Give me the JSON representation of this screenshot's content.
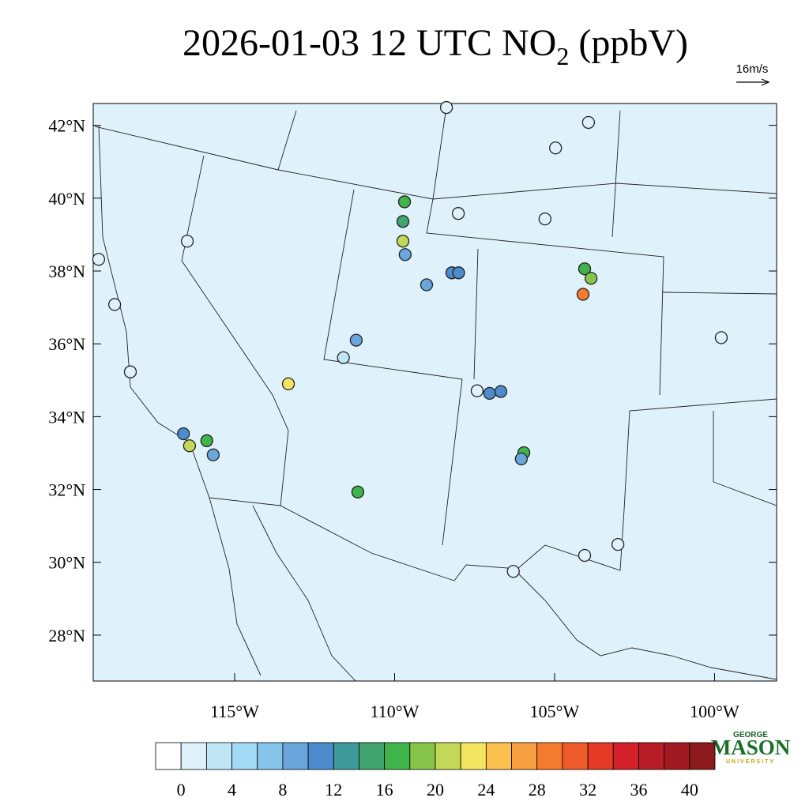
{
  "title": {
    "text": "2026-01-03 12 UTC NO",
    "subscript": "2",
    "suffix": " (ppbV)"
  },
  "map": {
    "xlim": [
      -119.42,
      -98.06
    ],
    "ylim": [
      26.74,
      42.6
    ],
    "background": "#dff2fb",
    "xticks": [
      {
        "value": -115,
        "label": "115°W"
      },
      {
        "value": -110,
        "label": "110°W"
      },
      {
        "value": -105,
        "label": "105°W"
      },
      {
        "value": -100,
        "label": "100°W"
      }
    ],
    "yticks": [
      {
        "value": 28,
        "label": "28°N"
      },
      {
        "value": 30,
        "label": "30°N"
      },
      {
        "value": 32,
        "label": "32°N"
      },
      {
        "value": 34,
        "label": "34°N"
      },
      {
        "value": 36,
        "label": "36°N"
      },
      {
        "value": 38,
        "label": "38°N"
      },
      {
        "value": 40,
        "label": "40°N"
      },
      {
        "value": 42,
        "label": "42°N"
      }
    ],
    "reference_vector": {
      "label": "16m/s"
    },
    "stations": {
      "lon": [
        -109.69,
        -109.74,
        -109.74,
        -109.67,
        -109.0,
        -111.2,
        -108.21,
        -108.0,
        -104.06,
        -103.86,
        -104.11,
        -107.03,
        -106.68,
        -105.96,
        -106.04,
        -111.15,
        -113.32,
        -116.6,
        -116.41,
        -115.87,
        -115.67,
        -119.25,
        -118.75,
        -116.48,
        -104.97,
        -103.94,
        -108.01,
        -99.79,
        -104.06,
        -103.02,
        -106.29,
        -118.26,
        -107.42,
        -111.6,
        -108.38,
        -105.3
      ],
      "lat": [
        39.9,
        39.36,
        38.82,
        38.45,
        37.62,
        36.1,
        37.95,
        37.95,
        38.06,
        37.8,
        37.36,
        34.64,
        34.69,
        33.01,
        32.84,
        31.93,
        34.9,
        33.53,
        33.2,
        33.34,
        32.95,
        38.32,
        37.08,
        38.82,
        41.38,
        42.08,
        39.58,
        36.17,
        30.19,
        30.49,
        29.75,
        35.23,
        34.71,
        35.62,
        42.49,
        39.43
      ],
      "values": [
        17,
        15,
        21,
        9,
        9,
        9,
        11,
        11,
        17,
        19,
        29,
        11,
        11,
        17,
        9,
        17,
        23,
        11,
        21,
        17,
        9,
        1,
        1,
        1,
        1,
        1,
        1,
        1,
        1,
        1,
        1,
        1,
        1,
        3,
        1,
        1
      ]
    }
  },
  "colorbar": {
    "lim": [
      -2,
      42
    ],
    "ticks": [
      0,
      4,
      8,
      12,
      16,
      20,
      24,
      28,
      32,
      36,
      40
    ],
    "colors": [
      "#ffffff",
      "#dff2fb",
      "#bfe6f7",
      "#a3daf5",
      "#87c4ea",
      "#6aa6dc",
      "#4d8ccc",
      "#3e9a9b",
      "#3fa46e",
      "#3fb44a",
      "#86c54a",
      "#c2d957",
      "#f4e560",
      "#fbc04e",
      "#f8a03f",
      "#f47a30",
      "#ef5a2a",
      "#e43a26",
      "#d4202a",
      "#b81c26",
      "#a11a22",
      "#8a1a1c"
    ]
  },
  "logo": {
    "top": "GEORGE",
    "main": "MASON",
    "bottom": "UNIVERSITY"
  }
}
